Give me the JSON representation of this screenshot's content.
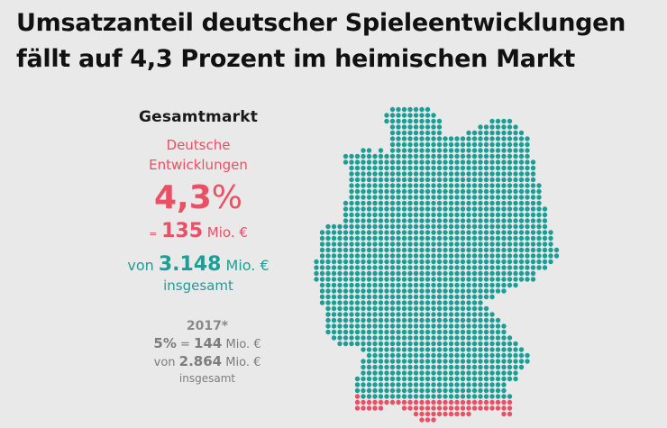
{
  "title": {
    "line1": "Umsatzanteil deutscher Spieleentwicklungen",
    "line2": "fällt auf 4,3 Prozent im heimischen Markt"
  },
  "current": {
    "heading": "Gesamtmarkt",
    "label_line1": "Deutsche",
    "label_line2": "Entwicklungen",
    "share_value": "4,3",
    "share_unit": "%",
    "eq_prefix": "=",
    "german_revenue": "135",
    "unit": "Mio. €",
    "total_prefix": "von",
    "total_revenue": "3.148",
    "total_suffix": "insgesamt"
  },
  "previous": {
    "year": "2017*",
    "share_value": "5",
    "share_unit": "%",
    "eq_prefix": "=",
    "german_revenue": "144",
    "unit": "Mio. €",
    "total_prefix": "von",
    "total_revenue": "2.864",
    "total_suffix": "insgesamt"
  },
  "colors": {
    "background": "#e9e9e9",
    "german_share": "#eb4f63",
    "total": "#1a9e96",
    "previous_text": "#7d7d7d"
  },
  "map": {
    "description": "Dot map of Germany; red dots represent the German developers' share, teal the rest of the market",
    "share_percent": 4.3,
    "rows": [
      {
        "teal": [
          [
            13,
            19
          ]
        ]
      },
      {
        "teal": [
          [
            12,
            20
          ]
        ]
      },
      {
        "teal": [
          [
            12,
            21
          ],
          [
            30,
            33
          ]
        ]
      },
      {
        "teal": [
          [
            13,
            21
          ],
          [
            28,
            34
          ]
        ]
      },
      {
        "teal": [
          [
            13,
            21
          ],
          [
            26,
            35
          ]
        ]
      },
      {
        "teal": [
          [
            13,
            36
          ]
        ]
      },
      {
        "teal": [
          [
            13,
            36
          ]
        ]
      },
      {
        "teal": [
          [
            8,
            9
          ],
          [
            11,
            11
          ],
          [
            13,
            36
          ]
        ]
      },
      {
        "teal": [
          [
            5,
            36
          ]
        ]
      },
      {
        "teal": [
          [
            5,
            37
          ]
        ]
      },
      {
        "teal": [
          [
            6,
            37
          ]
        ]
      },
      {
        "teal": [
          [
            6,
            37
          ]
        ]
      },
      {
        "teal": [
          [
            6,
            37
          ]
        ]
      },
      {
        "teal": [
          [
            6,
            38
          ]
        ]
      },
      {
        "teal": [
          [
            6,
            38
          ]
        ]
      },
      {
        "teal": [
          [
            6,
            38
          ]
        ]
      },
      {
        "teal": [
          [
            5,
            38
          ]
        ]
      },
      {
        "teal": [
          [
            5,
            39
          ]
        ]
      },
      {
        "teal": [
          [
            5,
            39
          ]
        ]
      },
      {
        "teal": [
          [
            5,
            39
          ]
        ]
      },
      {
        "teal": [
          [
            2,
            39
          ]
        ]
      },
      {
        "teal": [
          [
            1,
            40
          ]
        ]
      },
      {
        "teal": [
          [
            1,
            40
          ]
        ]
      },
      {
        "teal": [
          [
            1,
            40
          ]
        ]
      },
      {
        "teal": [
          [
            1,
            41
          ]
        ]
      },
      {
        "teal": [
          [
            1,
            41
          ]
        ]
      },
      {
        "teal": [
          [
            0,
            40
          ]
        ]
      },
      {
        "teal": [
          [
            0,
            39
          ]
        ]
      },
      {
        "teal": [
          [
            0,
            37
          ]
        ]
      },
      {
        "teal": [
          [
            0,
            37
          ]
        ]
      },
      {
        "teal": [
          [
            1,
            34
          ]
        ]
      },
      {
        "teal": [
          [
            1,
            32
          ]
        ]
      },
      {
        "teal": [
          [
            1,
            30
          ]
        ]
      },
      {
        "teal": [
          [
            1,
            28
          ]
        ]
      },
      {
        "teal": [
          [
            2,
            29
          ]
        ]
      },
      {
        "teal": [
          [
            2,
            30
          ]
        ]
      },
      {
        "teal": [
          [
            2,
            31
          ]
        ]
      },
      {
        "teal": [
          [
            2,
            32
          ]
        ]
      },
      {
        "teal": [
          [
            2,
            32
          ]
        ]
      },
      {
        "teal": [
          [
            3,
            33
          ]
        ]
      },
      {
        "teal": [
          [
            4,
            34
          ]
        ]
      },
      {
        "teal": [
          [
            8,
            35
          ]
        ]
      },
      {
        "teal": [
          [
            9,
            36
          ]
        ]
      },
      {
        "teal": [
          [
            8,
            36
          ]
        ]
      },
      {
        "teal": [
          [
            8,
            35
          ]
        ]
      },
      {
        "teal": [
          [
            8,
            34
          ]
        ]
      },
      {
        "teal": [
          [
            7,
            34
          ]
        ]
      },
      {
        "teal": [
          [
            7,
            32
          ]
        ]
      },
      {
        "teal": [
          [
            7,
            32
          ]
        ]
      },
      {
        "red": [
          [
            7,
            7
          ]
        ],
        "teal": [
          [
            8,
            33
          ]
        ]
      },
      {
        "red": [
          [
            7,
            33
          ]
        ]
      },
      {
        "red": [
          [
            7,
            11
          ],
          [
            15,
            33
          ]
        ]
      },
      {
        "red": [
          [
            17,
            26
          ],
          [
            32,
            33
          ]
        ]
      },
      {
        "red": [
          [
            18,
            20
          ]
        ]
      }
    ]
  }
}
